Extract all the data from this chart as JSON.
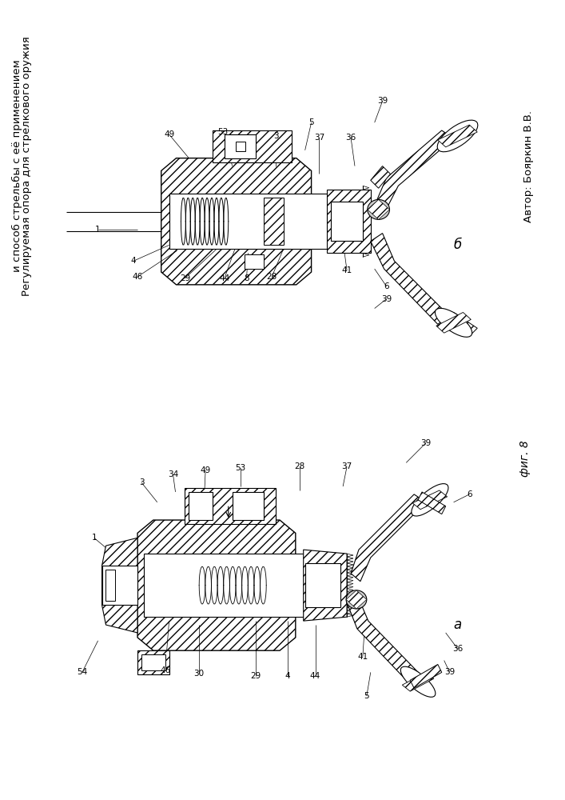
{
  "title_line1": "Регулируемая опора для стрелкового оружия",
  "title_line2": "и способ стрельбы с её применением",
  "author_text": "Автор: Бояркин В.В.",
  "fig_label_b": "б",
  "fig_label_a": "а",
  "fig_caption": "фиг. 8",
  "bg_color": "#ffffff",
  "line_color": "#000000"
}
